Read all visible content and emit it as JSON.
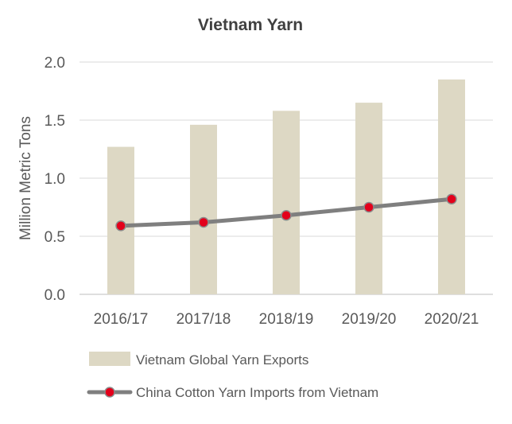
{
  "chart_data": {
    "type": "bar",
    "title": "Vietnam Yarn",
    "xlabel": "",
    "ylabel": "Million Metric Tons",
    "ylim": [
      0,
      2.0
    ],
    "yticks": [
      "0.0",
      "0.5",
      "1.0",
      "1.5",
      "2.0"
    ],
    "grid": true,
    "legend_position": "bottom",
    "categories": [
      "2016/17",
      "2017/18",
      "2018/19",
      "2019/20",
      "2020/21"
    ],
    "series": [
      {
        "name": "Vietnam Global Yarn Exports",
        "type": "bar",
        "color": "#ddd8c4",
        "values": [
          1.27,
          1.46,
          1.58,
          1.65,
          1.85
        ]
      },
      {
        "name": "China Cotton Yarn Imports from Vietnam",
        "type": "line",
        "color": "#7f7f7f",
        "marker_color": "#e3001b",
        "values": [
          0.59,
          0.62,
          0.68,
          0.75,
          0.82
        ]
      }
    ]
  }
}
